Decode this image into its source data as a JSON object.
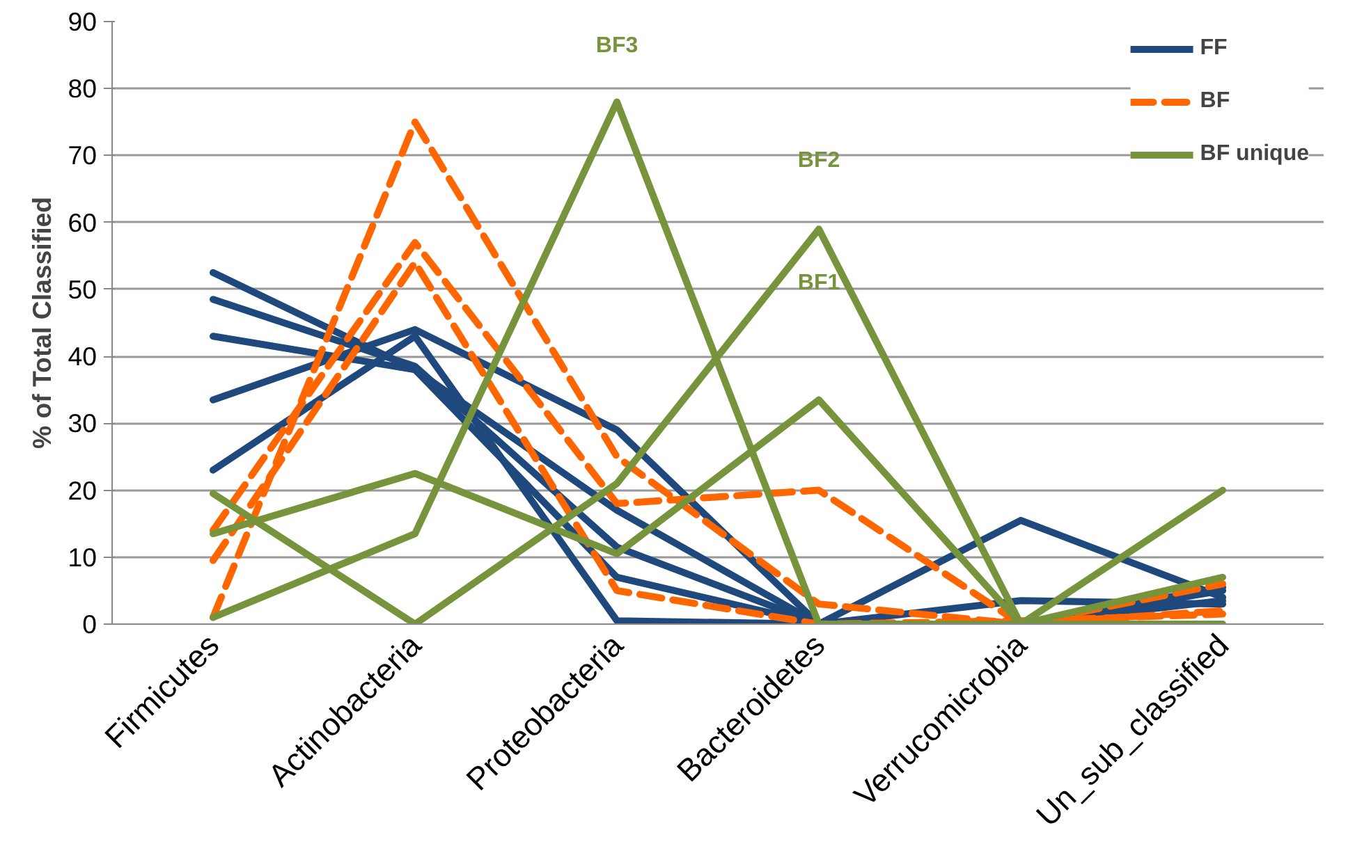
{
  "chart_data": {
    "type": "line",
    "ylabel": "% of Total Classified",
    "categories": [
      "Firmicutes",
      "Actinobacteria",
      "Proteobacteria",
      "Bacteroidetes",
      "Verrucomicrobia",
      "Un_sub_classified"
    ],
    "ylim": [
      0,
      90
    ],
    "yticks": [
      0,
      10,
      20,
      30,
      40,
      50,
      60,
      70,
      80,
      90
    ],
    "grid": "y",
    "legend": "top right",
    "marker": "none",
    "series": [
      {
        "name": "FF",
        "color": "#1f497d",
        "line_style": "solid",
        "values": [
          52.5,
          38,
          17,
          0,
          0,
          5
        ]
      },
      {
        "color": "#1f497d",
        "line_style": "solid",
        "values": [
          48.5,
          38.5,
          11.5,
          0,
          3.5,
          3
        ]
      },
      {
        "color": "#1f497d",
        "line_style": "solid",
        "values": [
          43,
          38,
          7,
          0,
          15.5,
          4
        ]
      },
      {
        "color": "#1f497d",
        "line_style": "solid",
        "values": [
          33.5,
          44,
          29,
          0,
          0,
          3.5
        ]
      },
      {
        "color": "#1f497d",
        "line_style": "solid",
        "values": [
          23,
          43,
          0.5,
          0,
          0,
          5.5
        ]
      },
      {
        "name": "BF",
        "color": "#ff6600",
        "line_style": "dashed",
        "values": [
          1,
          75,
          25,
          3,
          0,
          6
        ]
      },
      {
        "color": "#ff6600",
        "line_style": "dashed",
        "values": [
          14,
          57,
          18,
          20,
          0,
          2
        ]
      },
      {
        "color": "#ff6600",
        "line_style": "dashed",
        "values": [
          9.5,
          54,
          5,
          0,
          0.5,
          1.5
        ]
      },
      {
        "name": "BF unique",
        "color": "#77933c",
        "line_style": "solid",
        "values": [
          1,
          13.5,
          78,
          0,
          0,
          20
        ]
      },
      {
        "color": "#77933c",
        "line_style": "solid",
        "values": [
          19.5,
          0,
          21,
          59,
          0,
          7
        ]
      },
      {
        "color": "#77933c",
        "line_style": "solid",
        "values": [
          13.5,
          22.5,
          10.5,
          33.5,
          0,
          0
        ]
      }
    ],
    "annotations": [
      "BF3",
      "BF2",
      "BF1"
    ]
  }
}
